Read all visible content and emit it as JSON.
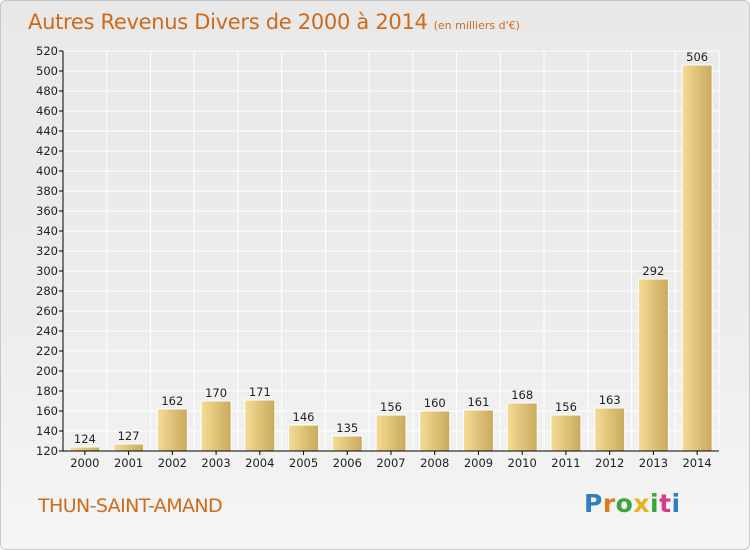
{
  "title": "Autres Revenus Divers de 2000 à 2014",
  "subtitle": "(en milliers d'€)",
  "place": "THUN-SAINT-AMAND",
  "logo_text": "Proxiti",
  "colors": {
    "title": "#d06a1a",
    "bar_light": "#f5dc96",
    "bar_dark": "#c9a95c",
    "axis": "#000000",
    "grid": "#ffffff",
    "logo_letters": [
      "#2f7fc1",
      "#e07a1f",
      "#3aa63a",
      "#e8b21a",
      "#3aa63a",
      "#d63a8f",
      "#2f7fc1"
    ]
  },
  "chart_data": {
    "type": "bar",
    "title": "Autres Revenus Divers de 2000 à 2014",
    "subtitle": "(en milliers d'€)",
    "xlabel": "",
    "ylabel": "",
    "categories": [
      "2000",
      "2001",
      "2002",
      "2003",
      "2004",
      "2005",
      "2006",
      "2007",
      "2008",
      "2009",
      "2010",
      "2011",
      "2012",
      "2013",
      "2014"
    ],
    "values": [
      124,
      127,
      162,
      170,
      171,
      146,
      135,
      156,
      160,
      161,
      168,
      156,
      163,
      292,
      506
    ],
    "ylim": [
      120,
      520
    ],
    "yticks": [
      120,
      140,
      160,
      180,
      200,
      220,
      240,
      260,
      280,
      300,
      320,
      340,
      360,
      380,
      400,
      420,
      440,
      460,
      480,
      500,
      520
    ],
    "grid": true,
    "data_labels": true
  }
}
